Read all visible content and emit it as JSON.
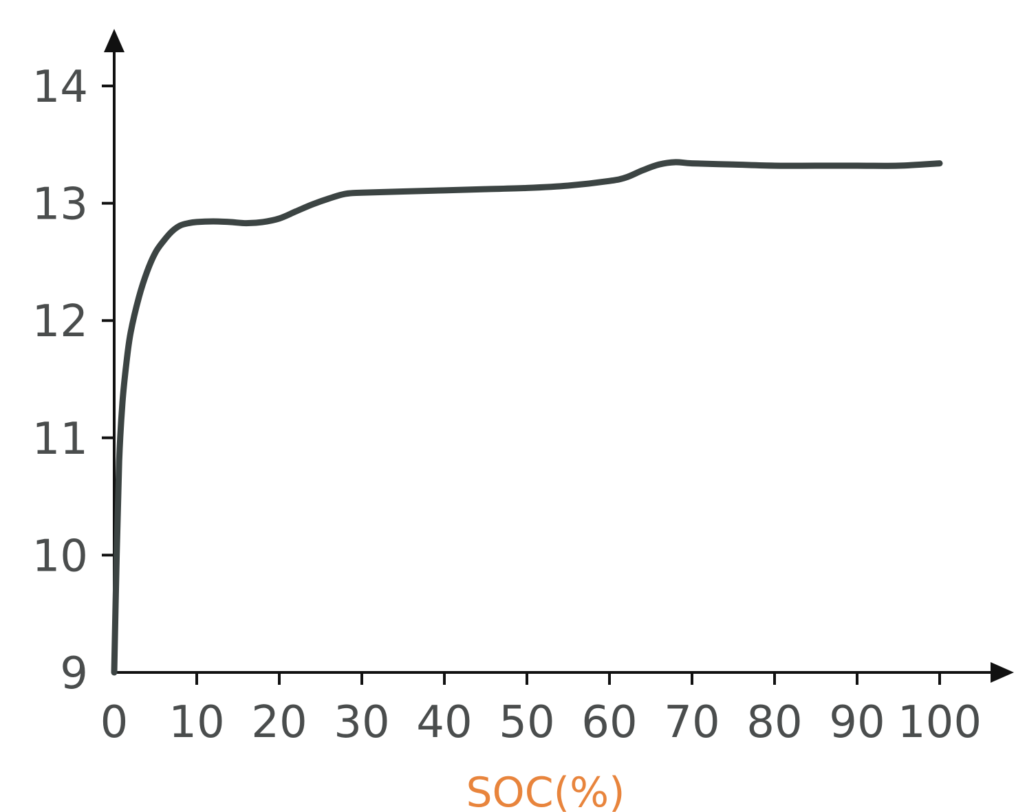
{
  "colors": {
    "background": "#ffffff",
    "axis": "#111111",
    "curve": "#3c4443",
    "tick_text": "#4a4d4d",
    "xlabel": "#e8843c"
  },
  "chart_data": {
    "type": "line",
    "title": "",
    "xlabel": "SOC(%)",
    "ylabel": "",
    "xlim": [
      0,
      100
    ],
    "ylim": [
      9,
      14
    ],
    "x_ticks": [
      "0",
      "10",
      "20",
      "30",
      "40",
      "50",
      "60",
      "70",
      "80",
      "90",
      "100"
    ],
    "y_ticks": [
      "9",
      "10",
      "11",
      "12",
      "13",
      "14"
    ],
    "grid": false,
    "legend": "none",
    "series": [
      {
        "x": [
          0,
          0.3,
          0.6,
          1,
          1.5,
          2,
          3,
          4,
          5,
          6,
          7,
          8,
          9,
          10,
          12,
          14,
          16,
          18,
          20,
          22,
          24,
          26,
          28,
          30,
          35,
          40,
          45,
          50,
          55,
          60,
          62,
          64,
          66,
          68,
          70,
          75,
          80,
          85,
          90,
          95,
          100
        ],
        "y": [
          9.0,
          10.0,
          10.8,
          11.3,
          11.65,
          11.9,
          12.2,
          12.42,
          12.58,
          12.68,
          12.76,
          12.81,
          12.83,
          12.84,
          12.845,
          12.84,
          12.83,
          12.84,
          12.87,
          12.93,
          12.99,
          13.04,
          13.08,
          13.09,
          13.1,
          13.11,
          13.12,
          13.13,
          13.15,
          13.19,
          13.22,
          13.28,
          13.33,
          13.35,
          13.34,
          13.33,
          13.32,
          13.32,
          13.32,
          13.32,
          13.34
        ]
      }
    ]
  }
}
